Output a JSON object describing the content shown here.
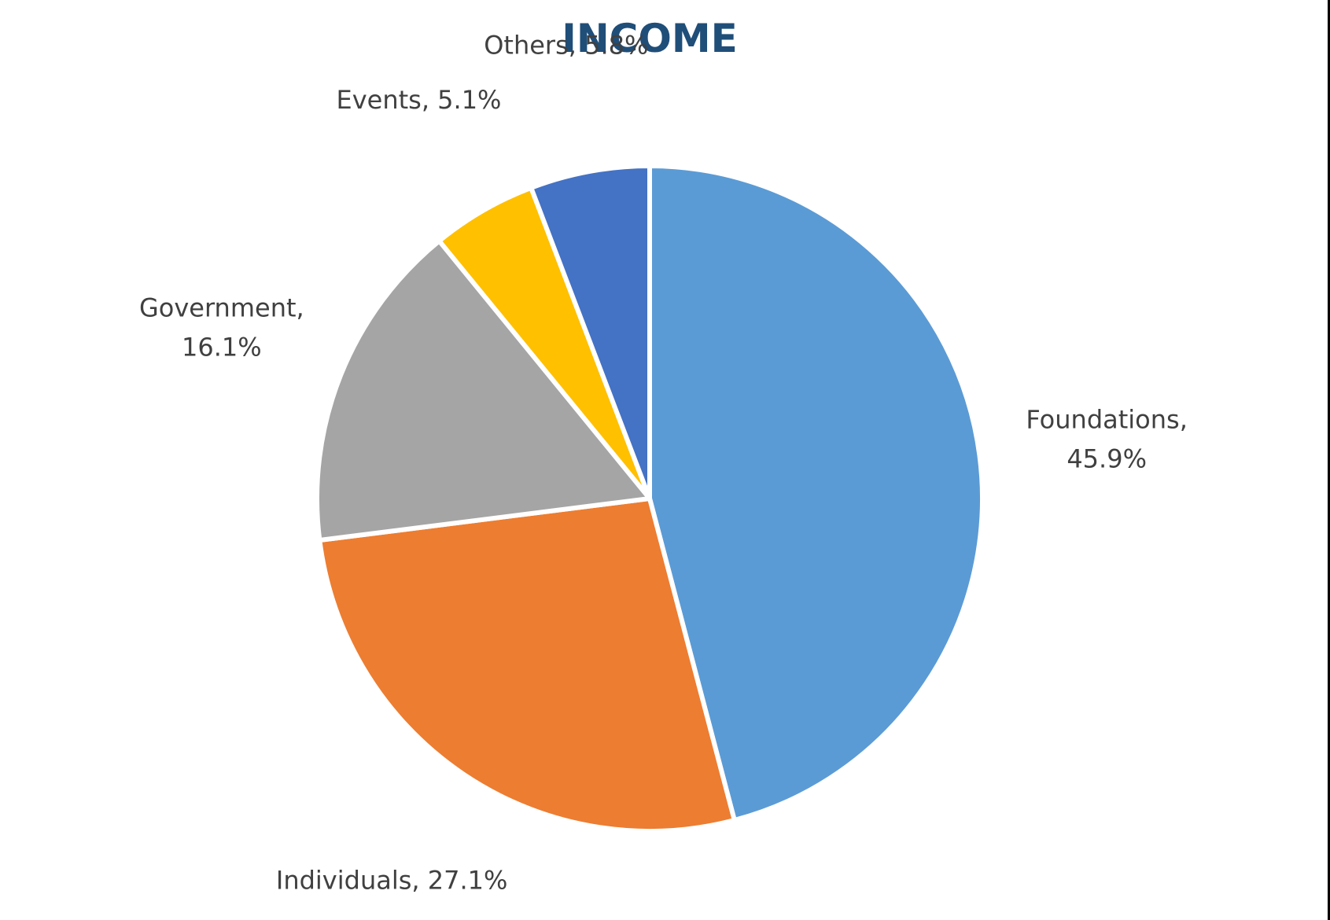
{
  "chart_data": {
    "type": "pie",
    "title": "INCOME",
    "slices": [
      {
        "name": "Foundations",
        "value": 45.9,
        "color": "#5b9bd5",
        "label_lines": [
          "Foundations,",
          "45.9%"
        ]
      },
      {
        "name": "Individuals",
        "value": 27.1,
        "color": "#ed7d31",
        "label_lines": [
          "Individuals, 27.1%"
        ]
      },
      {
        "name": "Government",
        "value": 16.1,
        "color": "#a5a5a5",
        "label_lines": [
          "Government,",
          "16.1%"
        ]
      },
      {
        "name": "Events",
        "value": 5.1,
        "color": "#ffc000",
        "label_lines": [
          "Events, 5.1%"
        ]
      },
      {
        "name": "Others",
        "value": 5.8,
        "color": "#4472c4",
        "label_lines": [
          "Others, 5.8%"
        ]
      }
    ],
    "start_angle": "12 o'clock",
    "direction": "clockwise",
    "legend": "none",
    "data_labels": "outside"
  }
}
